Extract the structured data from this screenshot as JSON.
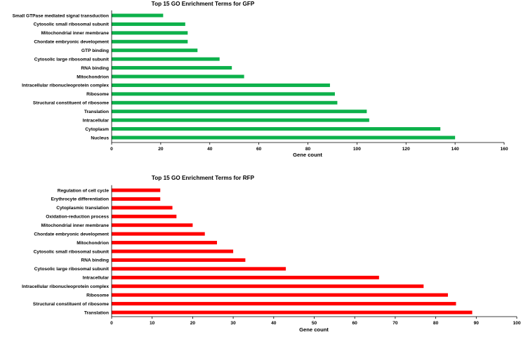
{
  "chart_data": [
    {
      "type": "bar",
      "orientation": "horizontal",
      "title": "Top 15 GO Enrichment Terms for GFP",
      "xlabel": "Gene count",
      "ylabel": "",
      "xlim": [
        0,
        160
      ],
      "xticks": [
        0,
        20,
        40,
        60,
        80,
        100,
        120,
        140,
        160
      ],
      "color": "#0db14b",
      "grid": false,
      "categories": [
        "Small GTPase mediated signal transduction",
        "Cytosolic small ribosomal subunit",
        "Mitochondrial inner membrane",
        "Chordate embryonic development",
        "GTP binding",
        "Cytosolic large ribosomal subunit",
        "RNA binding",
        "Mitochondrion",
        "Intracellular ribonucleoprotein complex",
        "Ribosome",
        "Structural constituent of ribosome",
        "Translation",
        "Intracellular",
        "Cytoplasm",
        "Nucleus"
      ],
      "values": [
        21,
        30,
        31,
        31,
        35,
        44,
        49,
        54,
        89,
        91,
        92,
        104,
        105,
        134,
        140
      ]
    },
    {
      "type": "bar",
      "orientation": "horizontal",
      "title": "Top 15 GO Enrichment Terms for RFP",
      "xlabel": "Gene count",
      "ylabel": "",
      "xlim": [
        0,
        100
      ],
      "xticks": [
        0,
        10,
        20,
        30,
        40,
        50,
        60,
        70,
        80,
        90,
        100
      ],
      "color": "#ff0000",
      "grid": false,
      "categories": [
        "Regulation of cell cycle",
        "Erythrocyte differentiation",
        "Cytoplasmic translation",
        "Oxidation-reduction process",
        "Mitochondrial inner membrane",
        "Chordate embryonic development",
        "Mitochondrion",
        "Cytosolic small ribosomal subunit",
        "RNA binding",
        "Cytosolic large ribosomal subunit",
        "Intracellular",
        "Intracellular ribonucleoprotein complex",
        "Ribosome",
        "Structural constituent of ribosome",
        "Translation"
      ],
      "values": [
        12,
        12,
        15,
        16,
        20,
        23,
        26,
        30,
        33,
        43,
        66,
        77,
        83,
        85,
        89
      ]
    }
  ]
}
